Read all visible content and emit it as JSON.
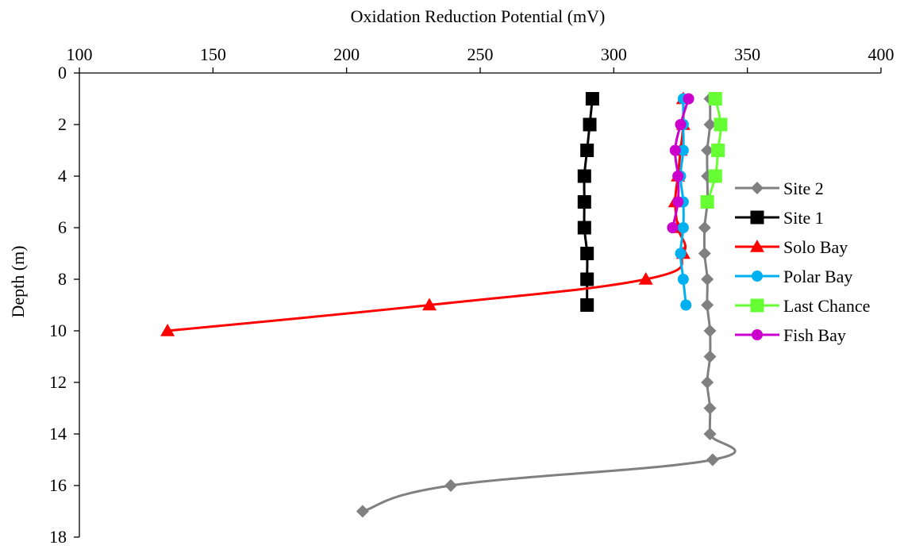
{
  "chart_data": {
    "type": "line",
    "xlabel": "Oxidation Reduction Potential (mV)",
    "ylabel": "Depth (m)",
    "xlim": [
      100,
      400
    ],
    "ylim": [
      0,
      18
    ],
    "x_ticks": [
      "100",
      "150",
      "200",
      "250",
      "300",
      "350",
      "400"
    ],
    "y_ticks": [
      "0",
      "2",
      "4",
      "6",
      "8",
      "10",
      "12",
      "14",
      "16",
      "18"
    ],
    "x_axis_position": "top",
    "y_axis_inverted": true,
    "grid": false,
    "legend_position": "right",
    "series": [
      {
        "name": "Site 2",
        "color": "#808080",
        "marker": "diamond",
        "x": [
          336,
          336,
          335,
          335,
          335,
          334,
          334,
          335,
          335,
          336,
          336,
          335,
          336,
          336,
          337,
          239,
          206
        ],
        "y": [
          1,
          2,
          3,
          4,
          5,
          6,
          7,
          8,
          9,
          10,
          11,
          12,
          13,
          14,
          15,
          16,
          17
        ]
      },
      {
        "name": "Site 1",
        "color": "#000000",
        "marker": "square",
        "x": [
          292,
          291,
          290,
          289,
          289,
          289,
          290,
          290,
          290
        ],
        "y": [
          1,
          2,
          3,
          4,
          5,
          6,
          7,
          8,
          9
        ]
      },
      {
        "name": "Solo Bay",
        "color": "#ff0000",
        "marker": "triangle",
        "x": [
          326,
          326,
          325,
          324,
          323,
          324,
          326,
          312,
          231,
          133
        ],
        "y": [
          1,
          2,
          3,
          4,
          5,
          6,
          7,
          8,
          9,
          10
        ]
      },
      {
        "name": "Polar Bay",
        "color": "#00b0f0",
        "marker": "circle",
        "x": [
          326,
          326,
          326,
          325,
          326,
          326,
          325,
          326,
          327
        ],
        "y": [
          1,
          2,
          3,
          4,
          5,
          6,
          7,
          8,
          9
        ]
      },
      {
        "name": "Last Chance",
        "color": "#66ff33",
        "marker": "square",
        "x": [
          338,
          340,
          339,
          338,
          335
        ],
        "y": [
          1,
          2,
          3,
          4,
          5
        ]
      },
      {
        "name": "Fish Bay",
        "color": "#cc00cc",
        "marker": "circle",
        "x": [
          328,
          325,
          323,
          324,
          324,
          322
        ],
        "y": [
          1,
          2,
          3,
          4,
          5,
          6
        ]
      }
    ]
  }
}
